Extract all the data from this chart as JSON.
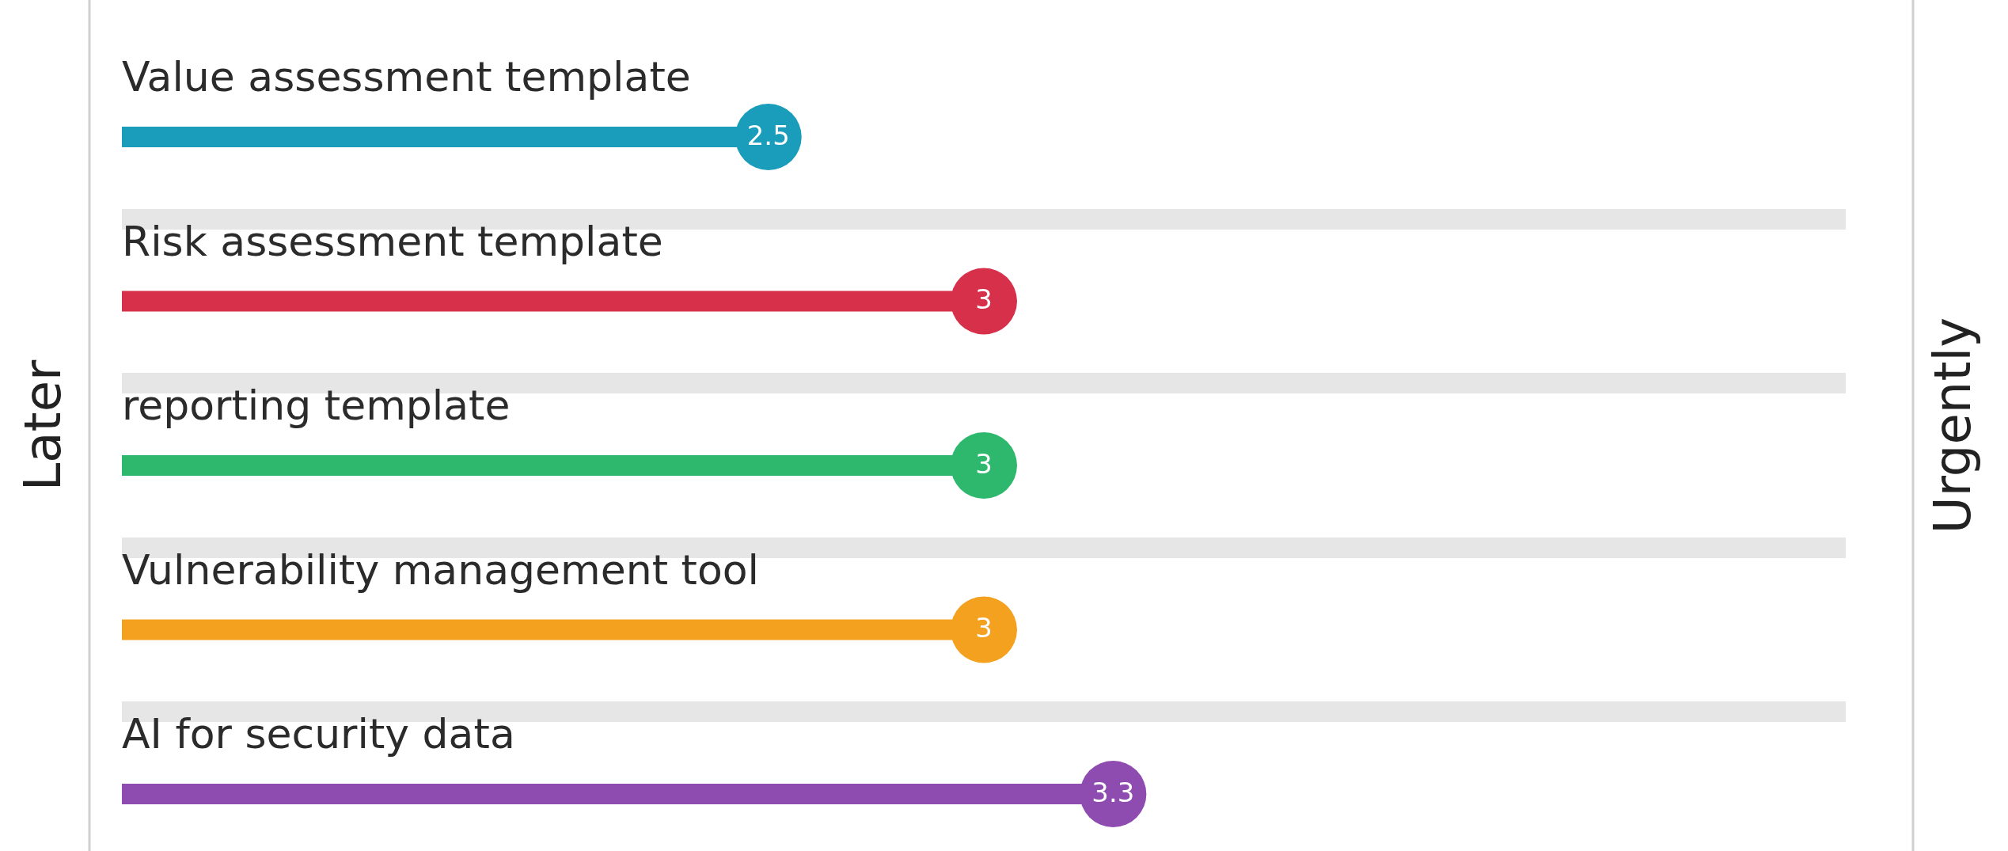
{
  "chart_data": {
    "type": "lollipop",
    "orientation": "horizontal",
    "categories": [
      "Value assessment template",
      "Risk assessment template",
      "reporting template",
      "Vulnerability management tool",
      "AI for security data"
    ],
    "values": [
      2.5,
      3,
      3,
      3,
      3.3
    ],
    "colors": [
      "#1a9dbb",
      "#d6304b",
      "#2eb86e",
      "#f3a11f",
      "#8e4bb0"
    ],
    "xlim": [
      1,
      5
    ],
    "annotations": [
      "Later",
      "Urgently"
    ],
    "data_labels": true,
    "grid": "y"
  }
}
